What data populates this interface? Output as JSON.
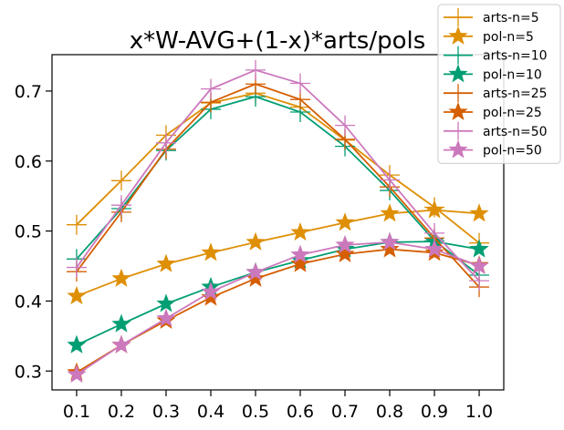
{
  "chart_data": {
    "type": "line",
    "title": "x*W-AVG+(1-x)*arts/pols",
    "xlabel": "",
    "ylabel": "",
    "x": [
      0.1,
      0.2,
      0.3,
      0.4,
      0.5,
      0.6,
      0.7,
      0.8,
      0.9,
      1.0
    ],
    "x_tick_labels": [
      "0.1",
      "0.2",
      "0.3",
      "0.4",
      "0.5",
      "0.6",
      "0.7",
      "0.8",
      "0.9",
      "1.0"
    ],
    "y_ticks": [
      0.3,
      0.4,
      0.5,
      0.6,
      0.7
    ],
    "y_tick_labels": [
      "0.3",
      "0.4",
      "0.5",
      "0.6",
      "0.7"
    ],
    "xlim": [
      0.045,
      1.055
    ],
    "ylim": [
      0.273,
      0.752
    ],
    "grid": false,
    "legend_position": "top-right",
    "series": [
      {
        "name": "arts-n=5",
        "color": "#de8f05",
        "marker": "plus",
        "values": [
          0.509,
          0.572,
          0.637,
          0.683,
          0.697,
          0.677,
          0.63,
          0.58,
          0.534,
          0.483
        ]
      },
      {
        "name": "pol-n=5",
        "color": "#de8f05",
        "marker": "star",
        "values": [
          0.407,
          0.432,
          0.453,
          0.469,
          0.484,
          0.498,
          0.512,
          0.525,
          0.53,
          0.525
        ]
      },
      {
        "name": "arts-n=10",
        "color": "#029e73",
        "marker": "plus",
        "values": [
          0.46,
          0.532,
          0.615,
          0.674,
          0.692,
          0.67,
          0.621,
          0.558,
          0.486,
          0.437
        ]
      },
      {
        "name": "pol-n=10",
        "color": "#029e73",
        "marker": "star",
        "values": [
          0.337,
          0.367,
          0.396,
          0.42,
          0.441,
          0.458,
          0.474,
          0.484,
          0.485,
          0.474
        ]
      },
      {
        "name": "arts-n=25",
        "color": "#d55e00",
        "marker": "plus",
        "values": [
          0.442,
          0.527,
          0.617,
          0.684,
          0.71,
          0.688,
          0.631,
          0.563,
          0.49,
          0.42
        ]
      },
      {
        "name": "pol-n=25",
        "color": "#d55e00",
        "marker": "star",
        "values": [
          0.298,
          0.337,
          0.372,
          0.405,
          0.432,
          0.453,
          0.467,
          0.474,
          0.469,
          0.451
        ]
      },
      {
        "name": "arts-n=50",
        "color": "#cc78bc",
        "marker": "plus",
        "values": [
          0.448,
          0.537,
          0.626,
          0.703,
          0.73,
          0.711,
          0.651,
          0.573,
          0.497,
          0.429
        ]
      },
      {
        "name": "pol-n=50",
        "color": "#cc78bc",
        "marker": "star",
        "values": [
          0.295,
          0.337,
          0.375,
          0.413,
          0.441,
          0.466,
          0.48,
          0.484,
          0.474,
          0.45
        ]
      }
    ]
  }
}
